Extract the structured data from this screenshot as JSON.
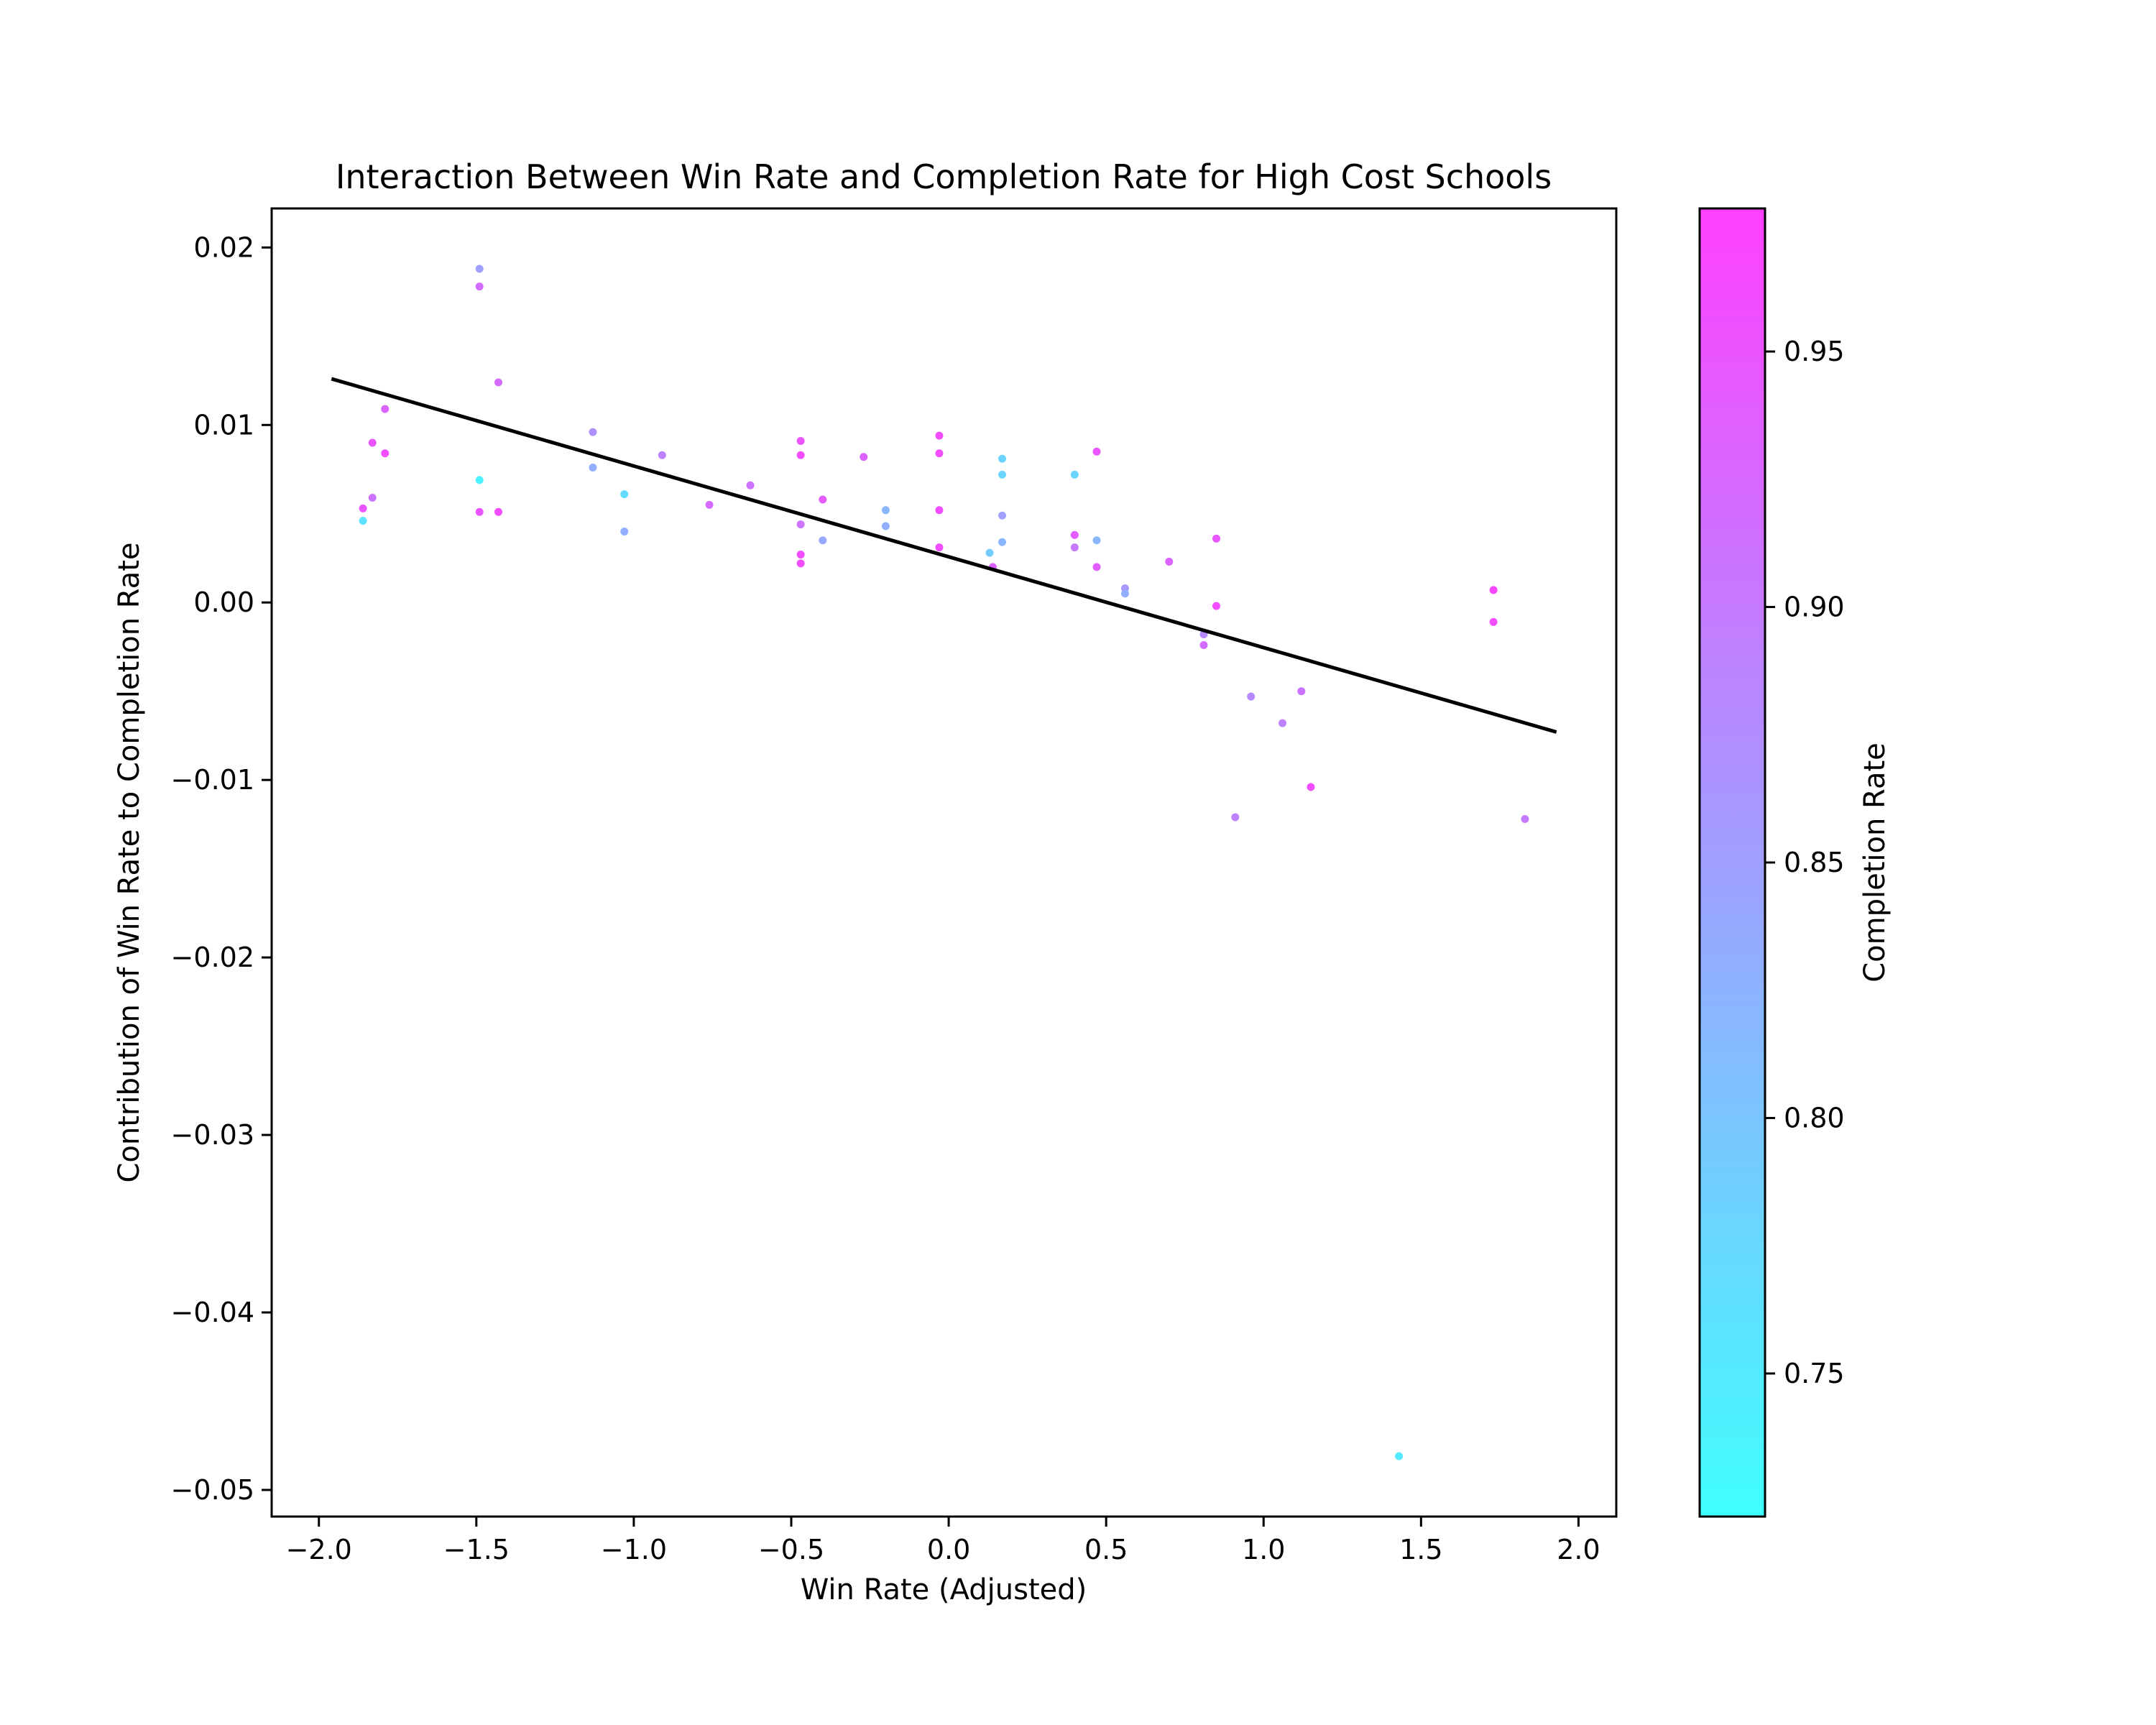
{
  "chart_data": {
    "type": "scatter",
    "title": "Interaction Between Win Rate and Completion Rate for High Cost Schools",
    "xlabel": "Win Rate (Adjusted)",
    "ylabel": "Contribution of Win Rate to Completion Rate",
    "xlim": [
      -2.15,
      2.12
    ],
    "ylim": [
      -0.0515,
      0.0222
    ],
    "xticks": [
      -2.0,
      -1.5,
      -1.0,
      -0.5,
      0.0,
      0.5,
      1.0,
      1.5,
      2.0
    ],
    "xtick_labels": [
      "−2.0",
      "−1.5",
      "−1.0",
      "−0.5",
      "0.0",
      "0.5",
      "1.0",
      "1.5",
      "2.0"
    ],
    "yticks": [
      0.02,
      0.01,
      0.0,
      -0.01,
      -0.02,
      -0.03,
      -0.04,
      -0.05
    ],
    "ytick_labels": [
      "0.02",
      "0.01",
      "0.00",
      "−0.01",
      "−0.02",
      "−0.03",
      "−0.04",
      "−0.05"
    ],
    "grid": false,
    "colormap": "cool",
    "colors": {
      "low": "#40ffff",
      "high": "#ff40ff",
      "trend_line": "#000000"
    },
    "colorbar": {
      "label": "Completion Rate",
      "range": [
        0.722,
        0.978
      ],
      "ticks": [
        0.75,
        0.8,
        0.85,
        0.9,
        0.95
      ],
      "tick_labels": [
        "0.75",
        "0.80",
        "0.85",
        "0.90",
        "0.95"
      ]
    },
    "trend_line": {
      "x": [
        -1.96,
        1.93
      ],
      "y": [
        0.0126,
        -0.0073
      ]
    },
    "points": [
      {
        "x": -1.86,
        "y": 0.0053,
        "c": 0.95
      },
      {
        "x": -1.86,
        "y": 0.0046,
        "c": 0.76
      },
      {
        "x": -1.83,
        "y": 0.009,
        "c": 0.95
      },
      {
        "x": -1.83,
        "y": 0.0059,
        "c": 0.91
      },
      {
        "x": -1.79,
        "y": 0.0109,
        "c": 0.93
      },
      {
        "x": -1.79,
        "y": 0.0084,
        "c": 0.96
      },
      {
        "x": -1.49,
        "y": 0.0188,
        "c": 0.85
      },
      {
        "x": -1.49,
        "y": 0.0178,
        "c": 0.92
      },
      {
        "x": -1.49,
        "y": 0.0069,
        "c": 0.74
      },
      {
        "x": -1.49,
        "y": 0.0051,
        "c": 0.95
      },
      {
        "x": -1.43,
        "y": 0.0124,
        "c": 0.92
      },
      {
        "x": -1.43,
        "y": 0.0051,
        "c": 0.96
      },
      {
        "x": -1.13,
        "y": 0.0096,
        "c": 0.87
      },
      {
        "x": -1.13,
        "y": 0.0076,
        "c": 0.83
      },
      {
        "x": -1.03,
        "y": 0.0061,
        "c": 0.77
      },
      {
        "x": -1.03,
        "y": 0.004,
        "c": 0.83
      },
      {
        "x": -0.91,
        "y": 0.0083,
        "c": 0.89
      },
      {
        "x": -0.76,
        "y": 0.0055,
        "c": 0.92
      },
      {
        "x": -0.63,
        "y": 0.0066,
        "c": 0.91
      },
      {
        "x": -0.47,
        "y": 0.0091,
        "c": 0.95
      },
      {
        "x": -0.47,
        "y": 0.0083,
        "c": 0.96
      },
      {
        "x": -0.47,
        "y": 0.0044,
        "c": 0.91
      },
      {
        "x": -0.47,
        "y": 0.0027,
        "c": 0.96
      },
      {
        "x": -0.47,
        "y": 0.0022,
        "c": 0.96
      },
      {
        "x": -0.4,
        "y": 0.0058,
        "c": 0.94
      },
      {
        "x": -0.4,
        "y": 0.0035,
        "c": 0.84
      },
      {
        "x": -0.27,
        "y": 0.0082,
        "c": 0.93
      },
      {
        "x": -0.2,
        "y": 0.0052,
        "c": 0.82
      },
      {
        "x": -0.2,
        "y": 0.0043,
        "c": 0.83
      },
      {
        "x": -0.03,
        "y": 0.0094,
        "c": 0.96
      },
      {
        "x": -0.03,
        "y": 0.0084,
        "c": 0.96
      },
      {
        "x": -0.03,
        "y": 0.0052,
        "c": 0.96
      },
      {
        "x": -0.03,
        "y": 0.0031,
        "c": 0.96
      },
      {
        "x": 0.13,
        "y": 0.0028,
        "c": 0.79
      },
      {
        "x": 0.14,
        "y": 0.002,
        "c": 0.93
      },
      {
        "x": 0.17,
        "y": 0.0081,
        "c": 0.78
      },
      {
        "x": 0.17,
        "y": 0.0072,
        "c": 0.78
      },
      {
        "x": 0.17,
        "y": 0.0049,
        "c": 0.85
      },
      {
        "x": 0.17,
        "y": 0.0034,
        "c": 0.82
      },
      {
        "x": 0.4,
        "y": 0.0072,
        "c": 0.78
      },
      {
        "x": 0.4,
        "y": 0.0038,
        "c": 0.94
      },
      {
        "x": 0.4,
        "y": 0.0031,
        "c": 0.9
      },
      {
        "x": 0.47,
        "y": 0.0085,
        "c": 0.95
      },
      {
        "x": 0.47,
        "y": 0.0035,
        "c": 0.82
      },
      {
        "x": 0.47,
        "y": 0.002,
        "c": 0.94
      },
      {
        "x": 0.56,
        "y": 0.0008,
        "c": 0.86
      },
      {
        "x": 0.56,
        "y": 0.0005,
        "c": 0.83
      },
      {
        "x": 0.7,
        "y": 0.0023,
        "c": 0.93
      },
      {
        "x": 0.81,
        "y": -0.0018,
        "c": 0.88
      },
      {
        "x": 0.81,
        "y": -0.0024,
        "c": 0.92
      },
      {
        "x": 0.85,
        "y": 0.0036,
        "c": 0.95
      },
      {
        "x": 0.85,
        "y": -0.0002,
        "c": 0.96
      },
      {
        "x": 0.91,
        "y": -0.0121,
        "c": 0.89
      },
      {
        "x": 0.96,
        "y": -0.0053,
        "c": 0.88
      },
      {
        "x": 1.06,
        "y": -0.0068,
        "c": 0.89
      },
      {
        "x": 1.12,
        "y": -0.005,
        "c": 0.91
      },
      {
        "x": 1.15,
        "y": -0.0104,
        "c": 0.96
      },
      {
        "x": 1.43,
        "y": -0.0481,
        "c": 0.75
      },
      {
        "x": 1.73,
        "y": 0.0007,
        "c": 0.97
      },
      {
        "x": 1.73,
        "y": -0.0011,
        "c": 0.96
      },
      {
        "x": 1.83,
        "y": -0.0122,
        "c": 0.9
      }
    ]
  }
}
